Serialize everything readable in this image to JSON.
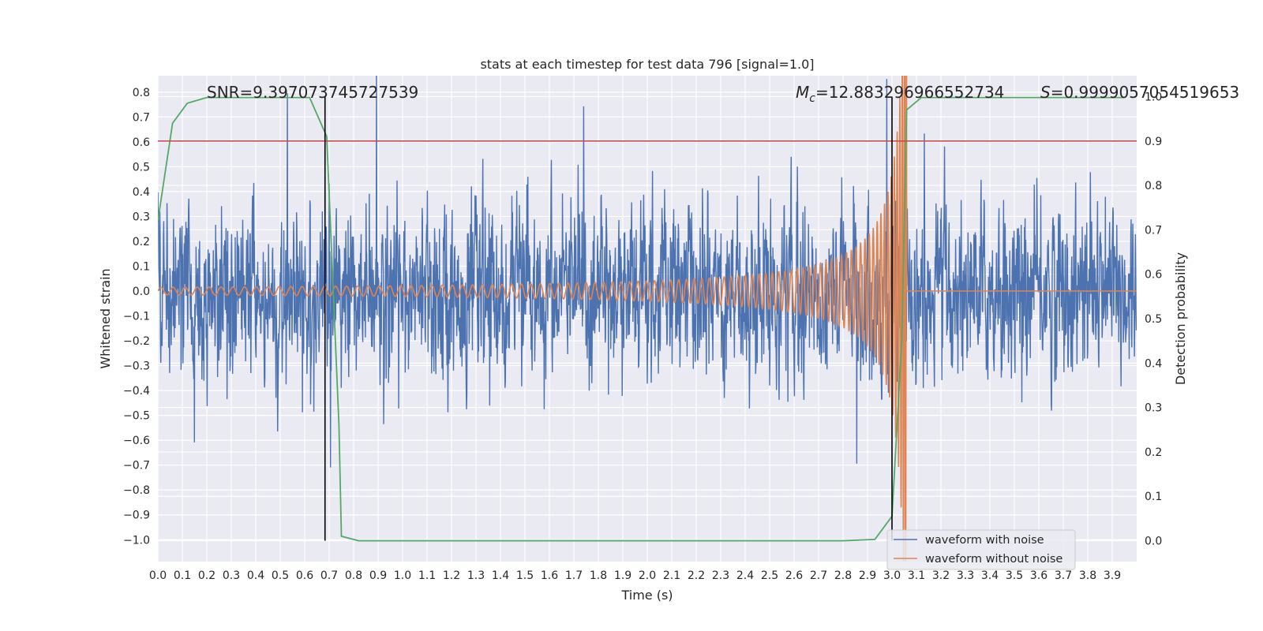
{
  "chart_data": {
    "type": "line",
    "title": "stats at each timestep for test data 796 [signal=1.0]",
    "xlabel": "Time (s)",
    "ylabel": "Whitened strain",
    "y2label": "Detection probability",
    "xlim": [
      0.0,
      4.0
    ],
    "ylim": [
      -1.088,
      0.866
    ],
    "y2lim": [
      -0.047,
      1.047
    ],
    "x_ticks": [
      "0.0",
      "0.1",
      "0.2",
      "0.3",
      "0.4",
      "0.5",
      "0.6",
      "0.7",
      "0.8",
      "0.9",
      "1.0",
      "1.1",
      "1.2",
      "1.3",
      "1.4",
      "1.5",
      "1.6",
      "1.7",
      "1.8",
      "1.9",
      "2.0",
      "2.1",
      "2.2",
      "2.3",
      "2.4",
      "2.5",
      "2.6",
      "2.7",
      "2.8",
      "2.9",
      "3.0",
      "3.1",
      "3.2",
      "3.3",
      "3.4",
      "3.5",
      "3.6",
      "3.7",
      "3.8",
      "3.9"
    ],
    "y_ticks": [
      "0.8",
      "0.7",
      "0.6",
      "0.5",
      "0.4",
      "0.3",
      "0.2",
      "0.1",
      "0.0",
      "−0.1",
      "−0.2",
      "−0.3",
      "−0.4",
      "−0.5",
      "−0.6",
      "−0.7",
      "−0.8",
      "−0.9",
      "−1.0"
    ],
    "y2_ticks": [
      "1.0",
      "0.9",
      "0.8",
      "0.7",
      "0.6",
      "0.5",
      "0.4",
      "0.3",
      "0.2",
      "0.1",
      "0.0"
    ],
    "grid": true,
    "legend_position": "lower-right",
    "annotations": {
      "snr": "SNR=9.397073745727539",
      "mc_symbol": "M",
      "mc_sub": "c",
      "mc_value": "=12.883296966552734",
      "s_symbol": "S",
      "s_value": "=0.9999057054519653"
    },
    "threshold": {
      "value": 0.9,
      "axis": "right",
      "color": "#c44e52"
    },
    "vlines": [
      0.683,
      3.0
    ],
    "series": [
      {
        "name": "waveform with noise",
        "color": "#4c72b0",
        "axis": "left",
        "kind": "noise",
        "amplitude_sigma": 0.17
      },
      {
        "name": "waveform without noise",
        "color": "#dd8452",
        "axis": "left",
        "kind": "chirp",
        "merger_time": 3.06,
        "start_amplitude": 0.015,
        "start_frequency_hz": 20
      },
      {
        "color": "#55a868",
        "axis": "right",
        "kind": "probability",
        "x": [
          0.0,
          0.06,
          0.12,
          0.2,
          0.3,
          0.4,
          0.5,
          0.62,
          0.69,
          0.74,
          0.75,
          0.82,
          1.0,
          1.5,
          2.0,
          2.5,
          2.8,
          2.93,
          3.0,
          3.04,
          3.06,
          3.12,
          3.3,
          3.6,
          3.8,
          3.95
        ],
        "y": [
          0.72,
          0.94,
          0.985,
          0.998,
          0.998,
          0.998,
          0.998,
          0.998,
          0.91,
          0.26,
          0.01,
          0.0,
          0.0,
          0.0,
          0.0,
          0.0,
          0.0,
          0.003,
          0.055,
          0.45,
          0.97,
          0.998,
          0.998,
          0.998,
          0.998,
          0.998
        ]
      }
    ]
  }
}
